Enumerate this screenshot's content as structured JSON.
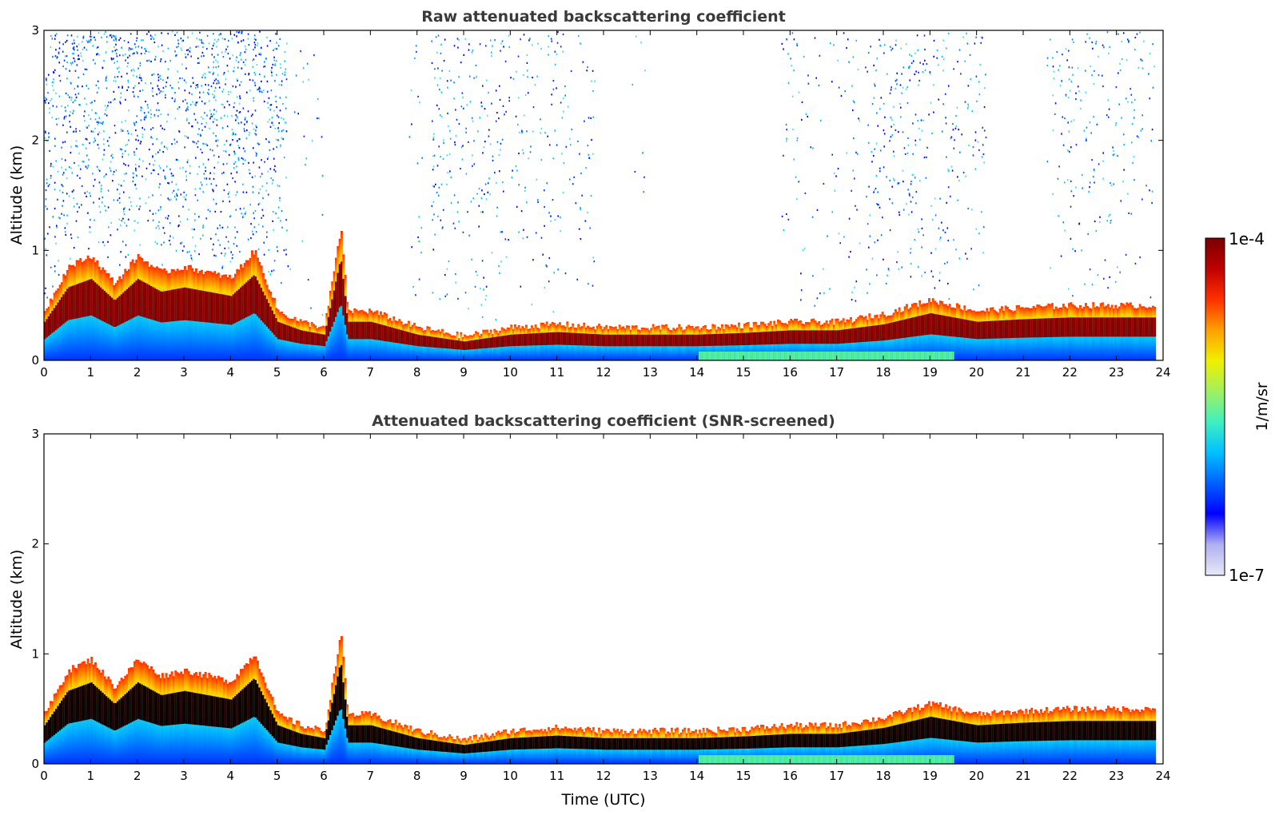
{
  "chart_data": [
    {
      "type": "heatmap",
      "title": "Raw attenuated backscattering coefficient",
      "xlabel": "",
      "ylabel": "Altitude (km)",
      "xlim": [
        0,
        24
      ],
      "ylim": [
        0,
        3
      ],
      "xticks": [
        0,
        1,
        2,
        3,
        4,
        5,
        6,
        7,
        8,
        9,
        10,
        11,
        12,
        13,
        14,
        15,
        16,
        17,
        18,
        19,
        20,
        21,
        22,
        23,
        24
      ],
      "yticks": [
        0,
        1,
        2,
        3
      ],
      "boundary_layer_top_km": [
        {
          "t": 0.0,
          "z": 0.45
        },
        {
          "t": 0.5,
          "z": 0.85
        },
        {
          "t": 1.0,
          "z": 0.95
        },
        {
          "t": 1.5,
          "z": 0.7
        },
        {
          "t": 2.0,
          "z": 0.95
        },
        {
          "t": 2.5,
          "z": 0.8
        },
        {
          "t": 3.0,
          "z": 0.85
        },
        {
          "t": 3.5,
          "z": 0.8
        },
        {
          "t": 4.0,
          "z": 0.75
        },
        {
          "t": 4.5,
          "z": 1.0
        },
        {
          "t": 5.0,
          "z": 0.45
        },
        {
          "t": 5.5,
          "z": 0.35
        },
        {
          "t": 6.0,
          "z": 0.3
        },
        {
          "t": 6.35,
          "z": 1.2
        },
        {
          "t": 6.5,
          "z": 0.45
        },
        {
          "t": 7.0,
          "z": 0.45
        },
        {
          "t": 8.0,
          "z": 0.3
        },
        {
          "t": 9.0,
          "z": 0.22
        },
        {
          "t": 10.0,
          "z": 0.3
        },
        {
          "t": 11.0,
          "z": 0.33
        },
        {
          "t": 12.0,
          "z": 0.3
        },
        {
          "t": 13.0,
          "z": 0.3
        },
        {
          "t": 14.0,
          "z": 0.3
        },
        {
          "t": 15.0,
          "z": 0.32
        },
        {
          "t": 16.0,
          "z": 0.35
        },
        {
          "t": 17.0,
          "z": 0.35
        },
        {
          "t": 18.0,
          "z": 0.42
        },
        {
          "t": 19.0,
          "z": 0.55
        },
        {
          "t": 20.0,
          "z": 0.45
        },
        {
          "t": 21.0,
          "z": 0.48
        },
        {
          "t": 22.0,
          "z": 0.5
        },
        {
          "t": 23.0,
          "z": 0.5
        },
        {
          "t": 23.8,
          "z": 0.5
        }
      ]
    },
    {
      "type": "heatmap",
      "title": "Attenuated backscattering coefficient (SNR-screened)",
      "xlabel": "Time (UTC)",
      "ylabel": "Altitude (km)",
      "xlim": [
        0,
        24
      ],
      "ylim": [
        0,
        3
      ],
      "xticks": [
        0,
        1,
        2,
        3,
        4,
        5,
        6,
        7,
        8,
        9,
        10,
        11,
        12,
        13,
        14,
        15,
        16,
        17,
        18,
        19,
        20,
        21,
        22,
        23,
        24
      ],
      "yticks": [
        0,
        1,
        2,
        3
      ]
    }
  ],
  "colorbar": {
    "label": "1/m/sr",
    "max_label": "1e-4",
    "min_label": "1e-7",
    "colors": [
      "#e8e8f8",
      "#b0b0f0",
      "#0000ff",
      "#0060ff",
      "#00c0ff",
      "#40f0c0",
      "#a0f060",
      "#f0f000",
      "#ffa000",
      "#ff3000",
      "#c00000",
      "#7a0000"
    ]
  }
}
